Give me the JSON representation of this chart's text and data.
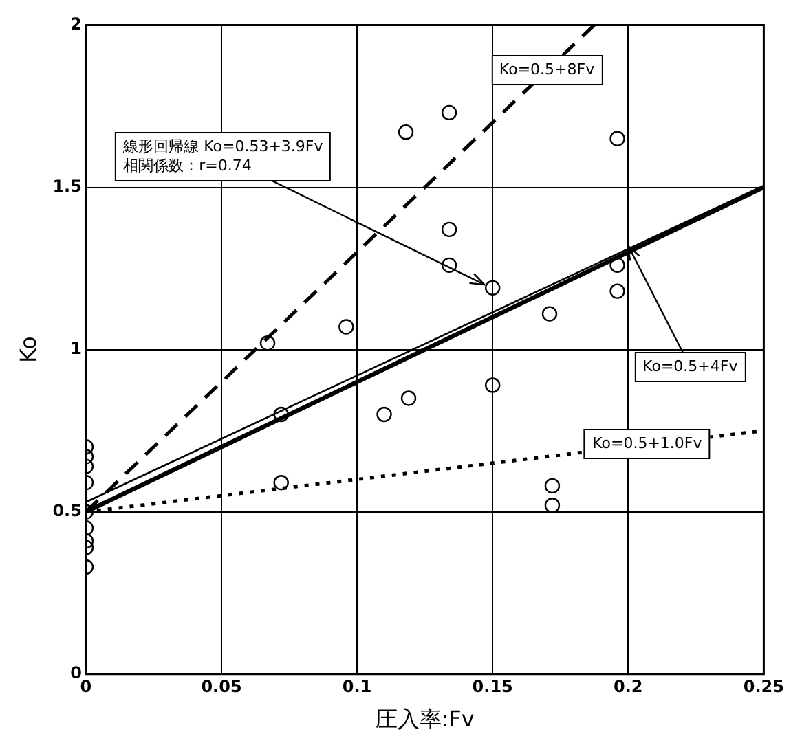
{
  "chart_data": {
    "type": "scatter",
    "xlabel": "圧入率:Fv",
    "ylabel": "Ko",
    "xlim": [
      0,
      0.25
    ],
    "ylim": [
      0,
      2
    ],
    "xticks": [
      0,
      0.05,
      0.1,
      0.15,
      0.2,
      0.25
    ],
    "yticks": [
      0,
      0.5,
      1,
      1.5,
      2
    ],
    "grid": true,
    "legend": false,
    "series": [
      {
        "marker": "circle",
        "color": "#000000",
        "x": [
          0,
          0,
          0,
          0,
          0,
          0,
          0,
          0,
          0,
          0.067,
          0.072,
          0.072,
          0.096,
          0.11,
          0.119,
          0.118,
          0.134,
          0.134,
          0.134,
          0.15,
          0.15,
          0.171,
          0.172,
          0.172,
          0.196,
          0.196,
          0.196
        ],
        "values": [
          0.7,
          0.67,
          0.64,
          0.59,
          0.5,
          0.45,
          0.41,
          0.39,
          0.33,
          1.02,
          0.8,
          0.59,
          1.07,
          0.8,
          0.85,
          1.67,
          1.73,
          1.37,
          1.26,
          1.19,
          0.89,
          1.11,
          0.58,
          0.52,
          1.65,
          1.26,
          1.18
        ]
      },
      {
        "type": "line",
        "color": "#000000",
        "line_style": "solid",
        "x": [
          0,
          0.25
        ],
        "values": [
          0.53,
          1.505
        ]
      },
      {
        "type": "line",
        "color": "#000000",
        "line_style": "solid",
        "x": [
          0,
          0.25
        ],
        "values": [
          0.5,
          1.5
        ]
      },
      {
        "type": "line",
        "color": "#000000",
        "line_style": "dashed",
        "x": [
          0,
          0.1875
        ],
        "values": [
          0.5,
          2
        ]
      },
      {
        "type": "line",
        "color": "#000000",
        "line_style": "dotted",
        "x": [
          0,
          0.25
        ],
        "values": [
          0.5,
          0.75
        ]
      }
    ],
    "annotations": [
      {
        "text": "線形回帰線 Ko=0.53+3.9Fv\n相関係数：r=0.74",
        "x": 0.147,
        "y": 1.2
      },
      {
        "text": "Ko=0.5+8Fv",
        "x": 0.17,
        "y": 1.86
      },
      {
        "text": "Ko=0.5+4Fv",
        "x": 0.2,
        "y": 1.32
      },
      {
        "text": "Ko=0.5+1.0Fv",
        "x": 0.207,
        "y": 0.707
      }
    ]
  }
}
